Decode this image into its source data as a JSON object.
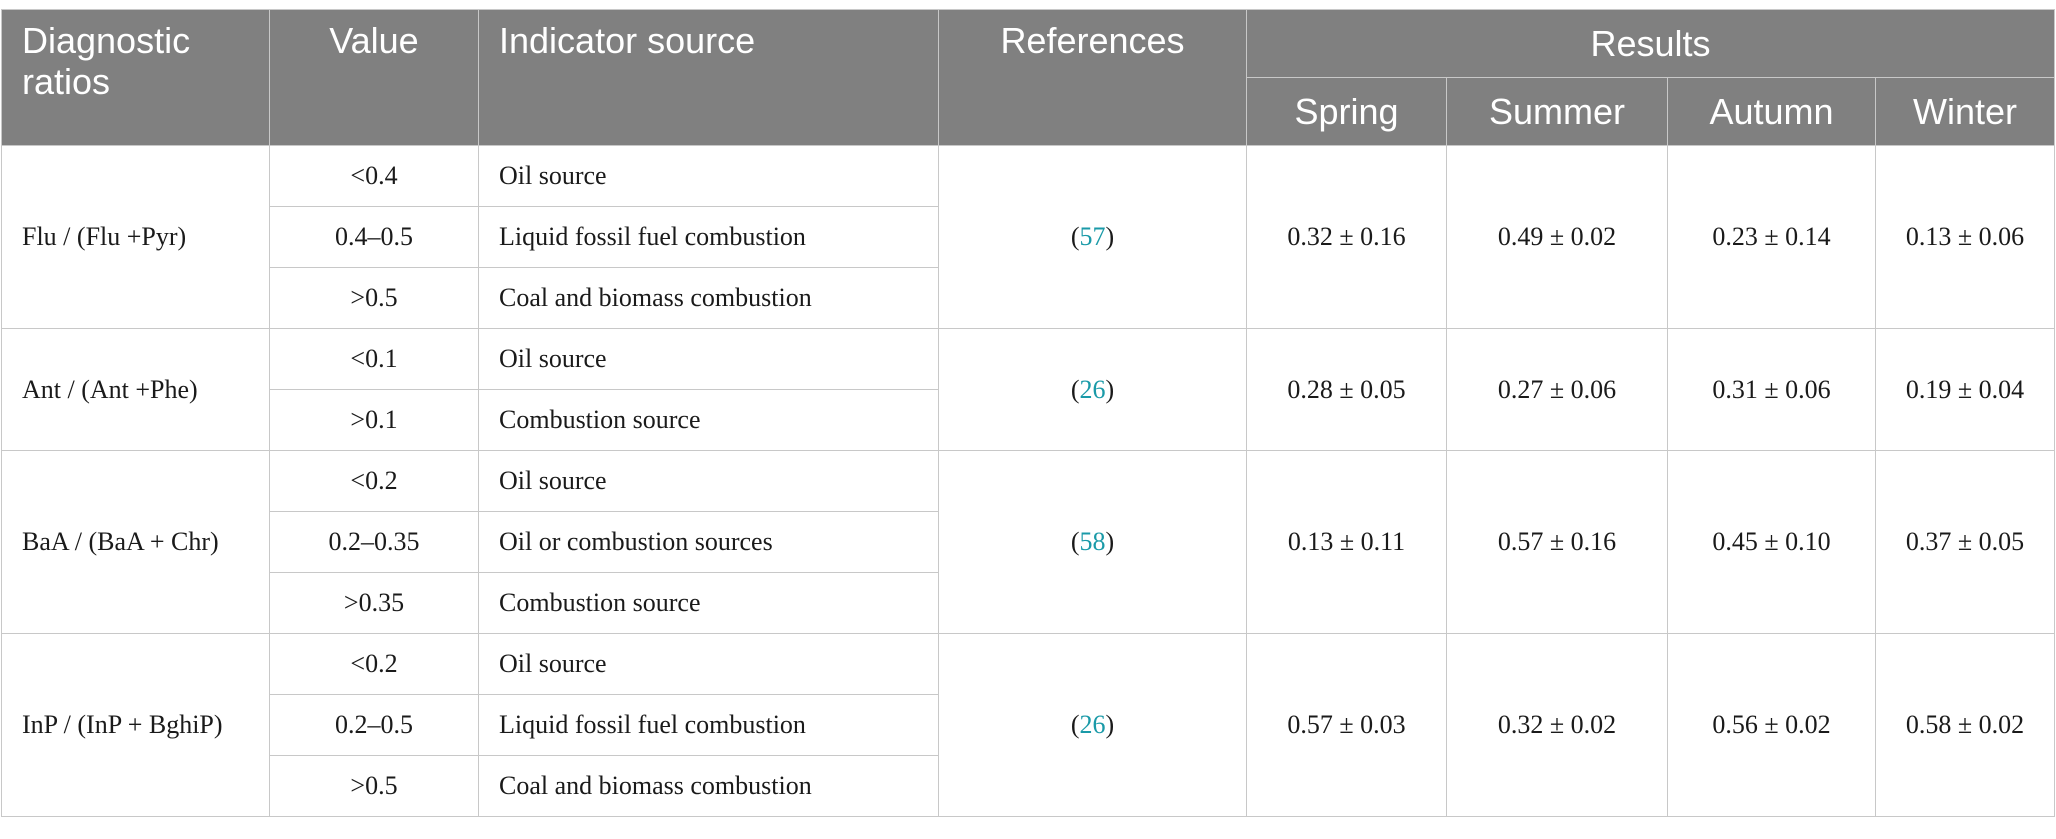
{
  "header": {
    "diagnostic_ratios": "Diagnostic ratios",
    "value": "Value",
    "indicator_source": "Indicator source",
    "references": "References",
    "results": "Results",
    "seasons": [
      "Spring",
      "Summer",
      "Autumn",
      "Winter"
    ]
  },
  "groups": [
    {
      "ratio": "Flu / (Flu +Pyr)",
      "ref_open": "(",
      "ref_num": "57",
      "ref_close": ")",
      "rows": [
        {
          "value": "<0.4",
          "source": "Oil source"
        },
        {
          "value": "0.4–0.5",
          "source": "Liquid fossil fuel combustion"
        },
        {
          "value": ">0.5",
          "source": "Coal and biomass combustion"
        }
      ],
      "results": [
        "0.32 ± 0.16",
        "0.49 ± 0.02",
        "0.23 ± 0.14",
        "0.13 ± 0.06"
      ]
    },
    {
      "ratio": "Ant / (Ant +Phe)",
      "ref_open": "(",
      "ref_num": "26",
      "ref_close": ")",
      "rows": [
        {
          "value": "<0.1",
          "source": "Oil source"
        },
        {
          "value": ">0.1",
          "source": "Combustion source"
        }
      ],
      "results": [
        "0.28 ± 0.05",
        "0.27 ± 0.06",
        "0.31 ± 0.06",
        "0.19 ± 0.04"
      ]
    },
    {
      "ratio": "BaA / (BaA + Chr)",
      "ref_open": "(",
      "ref_num": "58",
      "ref_close": ")",
      "rows": [
        {
          "value": "<0.2",
          "source": "Oil source"
        },
        {
          "value": "0.2–0.35",
          "source": "Oil or combustion sources"
        },
        {
          "value": ">0.35",
          "source": "Combustion source"
        }
      ],
      "results": [
        "0.13 ± 0.11",
        "0.57 ± 0.16",
        "0.45 ± 0.10",
        "0.37 ± 0.05"
      ]
    },
    {
      "ratio": "InP / (InP + BghiP)",
      "ref_open": "(",
      "ref_num": "26",
      "ref_close": ")",
      "rows": [
        {
          "value": "<0.2",
          "source": "Oil source"
        },
        {
          "value": "0.2–0.5",
          "source": "Liquid fossil fuel combustion"
        },
        {
          "value": ">0.5",
          "source": "Coal and biomass combustion"
        }
      ],
      "results": [
        "0.57 ± 0.03",
        "0.32 ± 0.02",
        "0.56 ± 0.02",
        "0.58 ± 0.02"
      ]
    }
  ]
}
